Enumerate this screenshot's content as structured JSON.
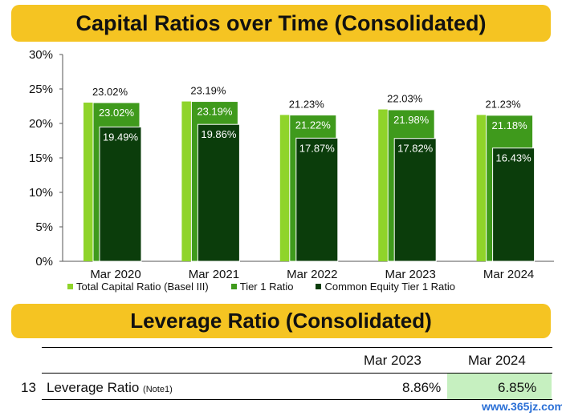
{
  "banners": {
    "chart_title": "Capital Ratios over Time (Consolidated)",
    "leverage_title": "Leverage Ratio (Consolidated)"
  },
  "colors": {
    "banner": "#f5c422",
    "total_capital": "#8fd42a",
    "tier1": "#3f9a1c",
    "cet1": "#0b3d0b",
    "highlight": "#c6f0c0"
  },
  "chart_data": {
    "type": "bar",
    "categories": [
      "Mar 2020",
      "Mar 2021",
      "Mar 2022",
      "Mar 2023",
      "Mar 2024"
    ],
    "series": [
      {
        "name": "Total Capital Ratio (Basel III)",
        "values": [
          23.02,
          23.19,
          21.23,
          22.03,
          21.23
        ],
        "labels": [
          "23.02%",
          "23.19%",
          "21.23%",
          "22.03%",
          "21.23%"
        ]
      },
      {
        "name": "Tier 1 Ratio",
        "values": [
          23.02,
          23.19,
          21.22,
          21.98,
          21.18
        ],
        "labels": [
          "23.02%",
          "23.19%",
          "21.22%",
          "21.98%",
          "21.18%"
        ]
      },
      {
        "name": "Common Equity Tier 1 Ratio",
        "values": [
          19.49,
          19.86,
          17.87,
          17.82,
          16.43
        ],
        "labels": [
          "19.49%",
          "19.86%",
          "17.87%",
          "17.82%",
          "16.43%"
        ]
      }
    ],
    "ylim": [
      0,
      30
    ],
    "yticks": [
      "0%",
      "5%",
      "10%",
      "15%",
      "20%",
      "25%",
      "30%"
    ],
    "grid": false,
    "legend_position": "bottom"
  },
  "leverage_table": {
    "col_headers": [
      "Mar 2023",
      "Mar 2024"
    ],
    "row_number": "13",
    "row_label": "Leverage Ratio",
    "row_note": "(Note1)",
    "values": [
      "8.86%",
      "6.85%"
    ]
  },
  "watermark": "www.365jz.com"
}
